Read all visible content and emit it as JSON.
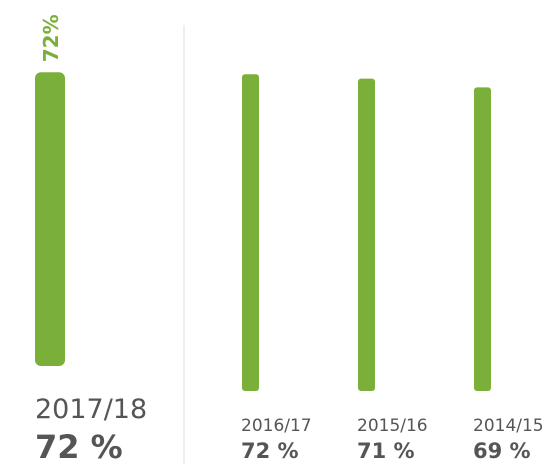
{
  "chart_data": {
    "type": "bar",
    "categories": [
      "2017/18",
      "2016/17",
      "2015/16",
      "2014/15"
    ],
    "values": [
      72,
      72,
      71,
      69
    ],
    "value_labels": [
      "72 %",
      "72 %",
      "71 %",
      "69 %"
    ],
    "top_label": "72%",
    "color": "#7ab03a"
  }
}
